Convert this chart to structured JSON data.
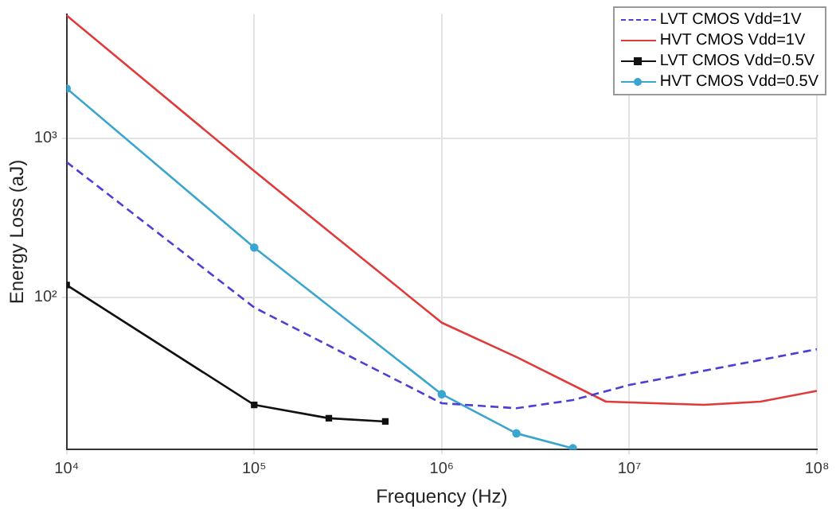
{
  "chart_data": {
    "type": "line",
    "xlabel": "Frequency (Hz)",
    "ylabel": "Energy Loss (aJ)",
    "log": "xy",
    "xlim": [
      10000,
      100000000
    ],
    "xticks": [
      {
        "value": 10000,
        "label": "10⁴"
      },
      {
        "value": 100000,
        "label": "10⁵"
      },
      {
        "value": 1000000,
        "label": "10⁶"
      },
      {
        "value": 10000000,
        "label": "10⁷"
      },
      {
        "value": 100000000,
        "label": "10⁸"
      }
    ],
    "ylim": [
      11,
      6000
    ],
    "yticks": [
      {
        "value": 100,
        "label": "10²"
      },
      {
        "value": 1000,
        "label": "10³"
      }
    ],
    "grid": true,
    "legend": "top right",
    "series": [
      {
        "name": "LVT CMOS Vdd=1V",
        "color": "#4b3fd6",
        "line_style": "dashed",
        "marker": "none",
        "x": [
          10000,
          100000,
          1000000,
          2500000,
          5000000,
          10000000,
          100000000
        ],
        "values": [
          706,
          86,
          21.5,
          20,
          22.5,
          28,
          47
        ]
      },
      {
        "name": "HVT CMOS Vdd=1V",
        "color": "#e03a3a",
        "line_style": "solid",
        "marker": "none",
        "x": [
          10000,
          100000,
          1000000,
          2500000,
          7500000,
          25000000,
          50000000,
          100000000
        ],
        "values": [
          5900,
          620,
          69,
          42,
          22,
          21,
          22,
          25.7
        ]
      },
      {
        "name": "LVT CMOS Vdd=0.5V",
        "color": "#111111",
        "line_style": "solid",
        "marker": "square",
        "x": [
          10000,
          100000,
          250000,
          500000
        ],
        "values": [
          119,
          21,
          17.3,
          16.5
        ]
      },
      {
        "name": "HVT CMOS Vdd=0.5V",
        "color": "#3aa6cf",
        "line_style": "solid",
        "marker": "circle",
        "x": [
          10000,
          100000,
          1000000,
          2500000,
          5000000
        ],
        "values": [
          2050,
          205,
          24.5,
          13.9,
          11.2
        ]
      }
    ]
  }
}
